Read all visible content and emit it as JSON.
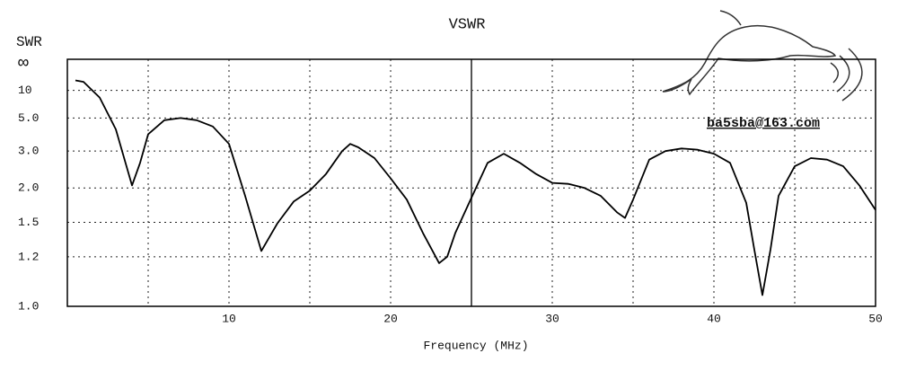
{
  "chart_data": {
    "type": "line",
    "title": "VSWR",
    "y_label": "SWR",
    "x_label": "Frequency (MHz)",
    "annotation": "ba5sba@163.com",
    "x": [
      0.5,
      1,
      2,
      3,
      4,
      4.5,
      5,
      6,
      7,
      8,
      9,
      10,
      11,
      12,
      13,
      14,
      15,
      16,
      17,
      17.5,
      18,
      19,
      20,
      21,
      22,
      23,
      23.5,
      24,
      25,
      26,
      27,
      28,
      29,
      30,
      31,
      32,
      33,
      34,
      34.5,
      35,
      36,
      37,
      38,
      39,
      40,
      41,
      42,
      42.5,
      43,
      43.5,
      44,
      45,
      46,
      47,
      48,
      49,
      50
    ],
    "values": [
      15,
      14,
      8,
      4.1,
      2.05,
      2.6,
      3.8,
      4.8,
      5.0,
      4.8,
      4.3,
      3.3,
      1.86,
      1.24,
      1.49,
      1.77,
      1.95,
      2.3,
      3.0,
      3.3,
      3.15,
      2.75,
      2.2,
      1.8,
      1.39,
      1.16,
      1.2,
      1.39,
      1.83,
      2.6,
      2.9,
      2.6,
      2.3,
      2.1,
      2.08,
      2.0,
      1.86,
      1.62,
      1.55,
      1.8,
      2.7,
      3.0,
      3.1,
      3.05,
      2.9,
      2.6,
      1.75,
      1.25,
      1.02,
      1.25,
      1.86,
      2.5,
      2.75,
      2.7,
      2.5,
      2.05,
      1.65
    ],
    "color": "#000000",
    "xlim": [
      0,
      50
    ],
    "xticks": [
      10,
      20,
      30,
      40,
      50
    ],
    "xminor": [
      5,
      15,
      35,
      45
    ],
    "cursor_x": 25,
    "ylim": [
      1,
      null
    ],
    "yticks": [
      {
        "value": 1,
        "label": "1.0"
      },
      1.2,
      1.5,
      {
        "value": 2,
        "label": "2.0"
      },
      {
        "value": 3,
        "label": "3.0"
      },
      {
        "value": 5,
        "label": "5.0"
      },
      10,
      {
        "value": null,
        "label": "∞"
      }
    ],
    "yscale": "reflection",
    "grid": true
  }
}
